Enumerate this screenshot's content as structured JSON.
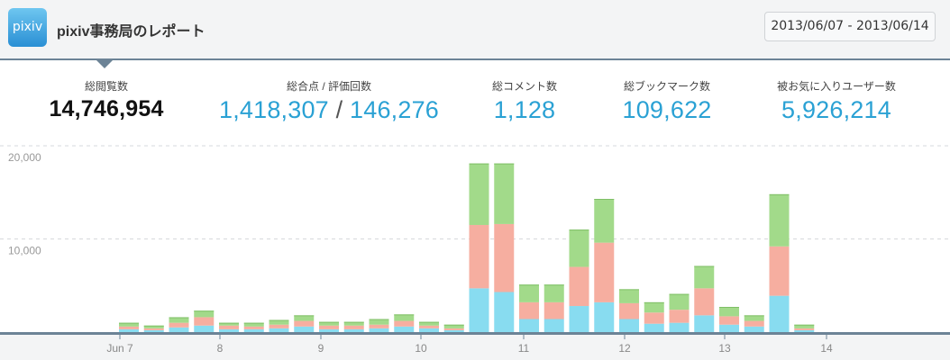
{
  "header": {
    "logo_text": "pixiv",
    "title": "pixiv事務局のレポート",
    "date_range": "2013/06/07 - 2013/06/14"
  },
  "stats": {
    "views": {
      "label": "総閲覧数",
      "value": "14,746,954"
    },
    "ratings": {
      "label": "総合点 / 評価回数",
      "score": "1,418,307",
      "separator": " / ",
      "count": "146,276"
    },
    "comments": {
      "label": "総コメント数",
      "value": "1,128"
    },
    "bookmarks": {
      "label": "総ブックマーク数",
      "value": "109,622"
    },
    "favorites": {
      "label": "被お気に入りユーザー数",
      "value": "5,926,214"
    }
  },
  "colors": {
    "series_bottom": "#88dcf0",
    "series_middle": "#f6aea0",
    "series_top": "#a2da8a",
    "axis": "#6c8396"
  },
  "chart_data": {
    "type": "bar",
    "stacked": true,
    "ylim": [
      0,
      20000
    ],
    "yticks": [
      "10,000",
      "20,000"
    ],
    "ytick_values": [
      10000,
      20000
    ],
    "x_tick_labels": [
      "Jun 7",
      "8",
      "9",
      "10",
      "11",
      "12",
      "13",
      "14"
    ],
    "series": [
      {
        "values": [
          300,
          200,
          500,
          700,
          300,
          300,
          400,
          600,
          300,
          300,
          400,
          600,
          400,
          200,
          4700,
          4300,
          1400,
          1400,
          2800,
          3200,
          1400,
          900,
          1000,
          1800,
          800,
          600,
          3900,
          200
        ]
      },
      {
        "values": [
          300,
          200,
          500,
          900,
          400,
          300,
          400,
          600,
          400,
          400,
          400,
          600,
          300,
          200,
          6800,
          7300,
          1800,
          1800,
          4200,
          6400,
          1700,
          1200,
          1400,
          2900,
          900,
          600,
          5300,
          200
        ]
      },
      {
        "values": [
          400,
          300,
          600,
          700,
          300,
          400,
          500,
          600,
          400,
          400,
          600,
          700,
          400,
          400,
          6600,
          6500,
          1900,
          1900,
          4000,
          4700,
          1500,
          1100,
          1700,
          2400,
          1000,
          600,
          5600,
          400
        ]
      }
    ]
  }
}
